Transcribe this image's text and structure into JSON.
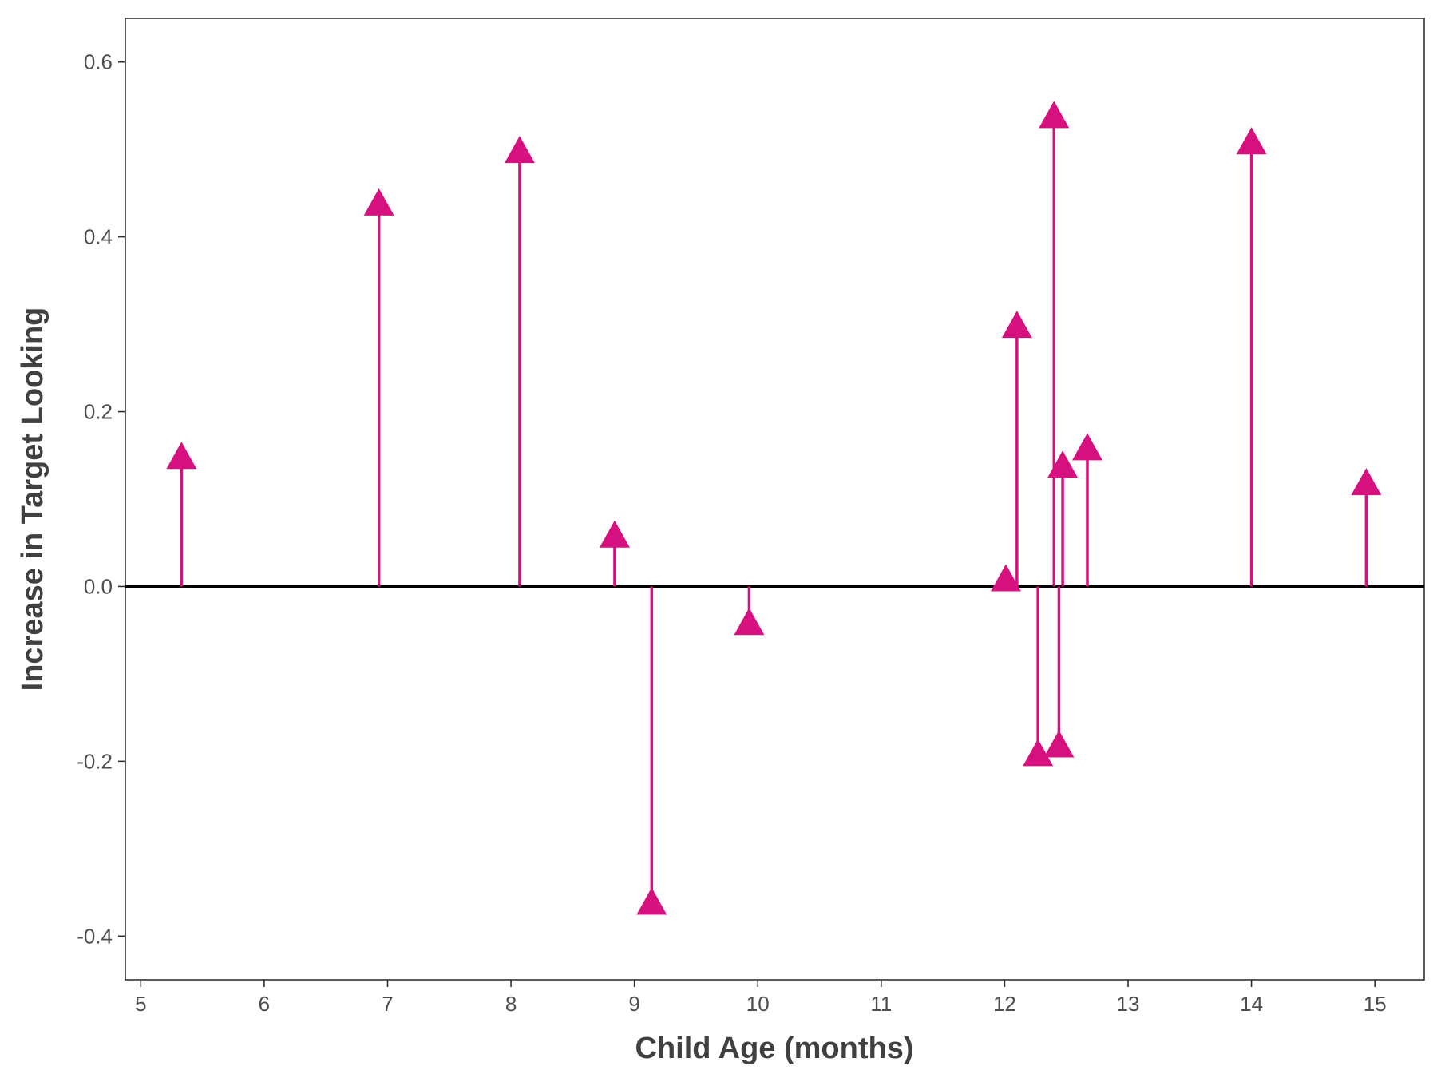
{
  "chart_data": {
    "type": "scatter",
    "title": "",
    "xlabel": "Child Age (months)",
    "ylabel": "Increase in Target Looking",
    "xlim": [
      4.875,
      15.4
    ],
    "ylim": [
      -0.45,
      0.65
    ],
    "x_ticks": [
      5,
      6,
      7,
      8,
      9,
      10,
      11,
      12,
      13,
      14,
      15
    ],
    "x_tick_labels": [
      "5",
      "6",
      "7",
      "8",
      "9",
      "10",
      "11",
      "12",
      "13",
      "14",
      "15"
    ],
    "y_ticks": [
      -0.4,
      -0.2,
      0.0,
      0.2,
      0.4,
      0.6
    ],
    "y_tick_labels": [
      "-0.4",
      "-0.2",
      "0.0",
      "0.2",
      "0.4",
      "0.6"
    ],
    "grid": false,
    "reference_line": 0,
    "marker": "triangle",
    "color": "#d6107f",
    "points": [
      {
        "x": 5.33,
        "y": 0.15
      },
      {
        "x": 6.93,
        "y": 0.44
      },
      {
        "x": 8.07,
        "y": 0.5
      },
      {
        "x": 8.84,
        "y": 0.06
      },
      {
        "x": 9.14,
        "y": -0.36
      },
      {
        "x": 9.93,
        "y": -0.04
      },
      {
        "x": 12.01,
        "y": 0.01
      },
      {
        "x": 12.1,
        "y": 0.3
      },
      {
        "x": 12.27,
        "y": -0.19
      },
      {
        "x": 12.4,
        "y": 0.54
      },
      {
        "x": 12.44,
        "y": -0.18
      },
      {
        "x": 12.47,
        "y": 0.14
      },
      {
        "x": 12.67,
        "y": 0.16
      },
      {
        "x": 14.0,
        "y": 0.51
      },
      {
        "x": 14.93,
        "y": 0.12
      }
    ]
  }
}
